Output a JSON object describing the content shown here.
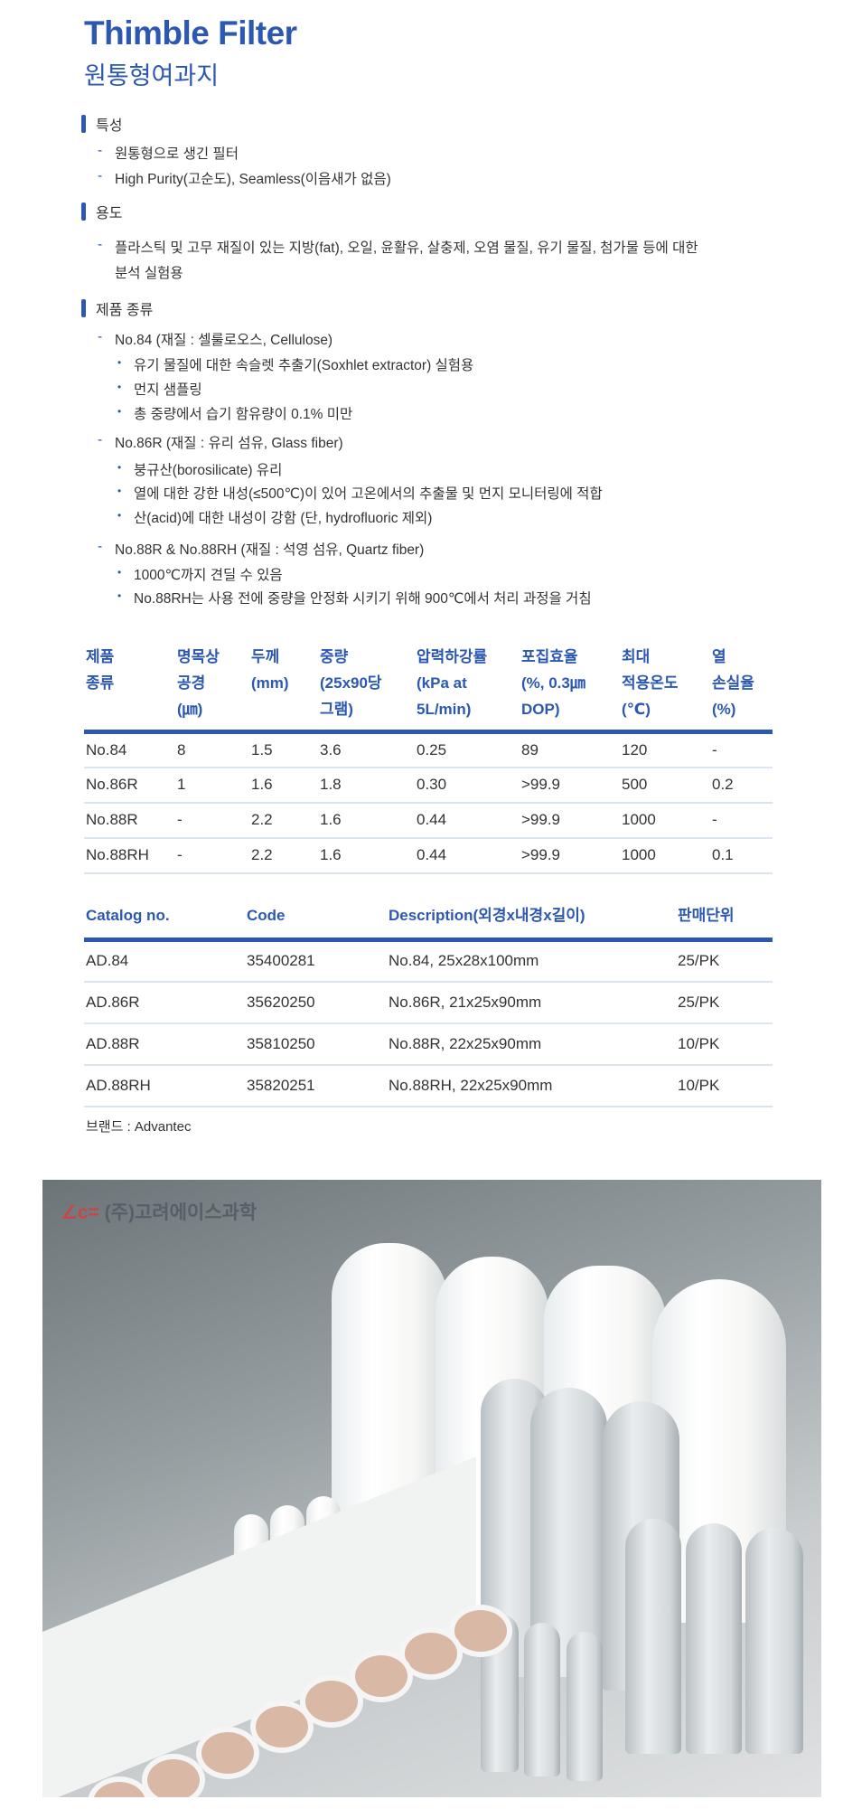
{
  "header": {
    "title": "Thimble Filter",
    "subtitle": "원통형여과지"
  },
  "sections": {
    "features": {
      "heading": "특성",
      "items": [
        "원통형으로 생긴 필터",
        "High Purity(고순도), Seamless(이음새가 없음)"
      ]
    },
    "uses": {
      "heading": "용도",
      "items": [
        "플라스틱 및 고무 재질이 있는 지방(fat), 오일, 윤활유, 살충제, 오염 물질, 유기 물질, 첨가물 등에 대한",
        "분석 실험용"
      ]
    },
    "types": {
      "heading": "제품 종류",
      "groups": [
        {
          "title": "No.84 (재질 : 셀룰로오스, Cellulose)",
          "items": [
            "유기 물질에 대한 속슬렛 추출기(Soxhlet extractor) 실험용",
            "먼지 샘플링",
            "총 중량에서 습기 함유량이 0.1% 미만"
          ]
        },
        {
          "title": "No.86R (재질 : 유리 섬유, Glass fiber)",
          "items": [
            "붕규산(borosilicate) 유리",
            "열에 대한 강한 내성(≤500℃)이 있어 고온에서의 추출물 및 먼지 모니터링에 적합",
            "산(acid)에 대한 내성이 강함 (단, hydrofluoric 제외)"
          ]
        },
        {
          "title": "No.88R & No.88RH (재질 : 석영 섬유, Quartz fiber)",
          "items": [
            "1000℃까지 견딜 수 있음",
            "No.88RH는 사용 전에 중량을 안정화 시키기 위해 900℃에서 처리 과정을 거침"
          ]
        }
      ]
    }
  },
  "spec_table": {
    "headers": [
      [
        "제품",
        "종류"
      ],
      [
        "명목상",
        "공경",
        "(㎛)"
      ],
      [
        "두께",
        "(mm)"
      ],
      [
        "중량",
        "(25x90당",
        "그램)"
      ],
      [
        "압력하강률",
        "(kPa at",
        "5L/min)"
      ],
      [
        "포집효율",
        "(%, 0.3㎛",
        "DOP)"
      ],
      [
        "최대",
        "적용온도",
        "(℃)"
      ],
      [
        "열",
        "손실율",
        "(%)"
      ]
    ],
    "rows": [
      [
        "No.84",
        "8",
        "1.5",
        "3.6",
        "0.25",
        "89",
        "120",
        "-"
      ],
      [
        "No.86R",
        "1",
        "1.6",
        "1.8",
        "0.30",
        ">99.9",
        "500",
        "0.2"
      ],
      [
        "No.88R",
        "-",
        "2.2",
        "1.6",
        "0.44",
        ">99.9",
        "1000",
        "-"
      ],
      [
        "No.88RH",
        "-",
        "2.2",
        "1.6",
        "0.44",
        ">99.9",
        "1000",
        "0.1"
      ]
    ]
  },
  "catalog_table": {
    "headers": [
      "Catalog no.",
      "Code",
      "Description(외경x내경x길이)",
      "판매단위"
    ],
    "rows": [
      [
        "AD.84",
        "35400281",
        "No.84, 25x28x100mm",
        "25/PK"
      ],
      [
        "AD.86R",
        "35620250",
        "No.86R, 21x25x90mm",
        "25/PK"
      ],
      [
        "AD.88R",
        "35810250",
        "No.88R, 22x25x90mm",
        "10/PK"
      ],
      [
        "AD.88RH",
        "35820251",
        "No.88RH, 22x25x90mm",
        "10/PK"
      ]
    ]
  },
  "brand": "브랜드 : Advantec",
  "photo": {
    "watermark": "(주)고려에이스과학"
  },
  "colors": {
    "accent": "#2c58b2",
    "divider": "#dbe4f3"
  }
}
